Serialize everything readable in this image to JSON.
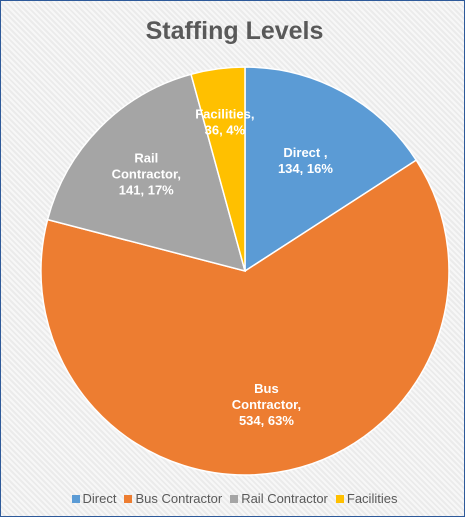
{
  "chart_data": {
    "type": "pie",
    "title": "Staffing Levels",
    "categories": [
      "Direct",
      "Bus Contractor",
      "Rail Contractor",
      "Facilities"
    ],
    "values": [
      134,
      534,
      141,
      36
    ],
    "percentages": [
      "16%",
      "63%",
      "17%",
      "4%"
    ],
    "colors": [
      "#5b9bd5",
      "#ed7d31",
      "#a5a5a5",
      "#ffc000"
    ],
    "data_labels": [
      [
        "Direct ,",
        "134, 16%"
      ],
      [
        "Bus",
        "Contractor,",
        "534, 63%"
      ],
      [
        "Rail",
        "Contractor,",
        "141, 17%"
      ],
      [
        "Facilities,",
        "36, 4%"
      ]
    ],
    "legend_position": "bottom",
    "start_angle": "12 o'clock, clockwise"
  }
}
